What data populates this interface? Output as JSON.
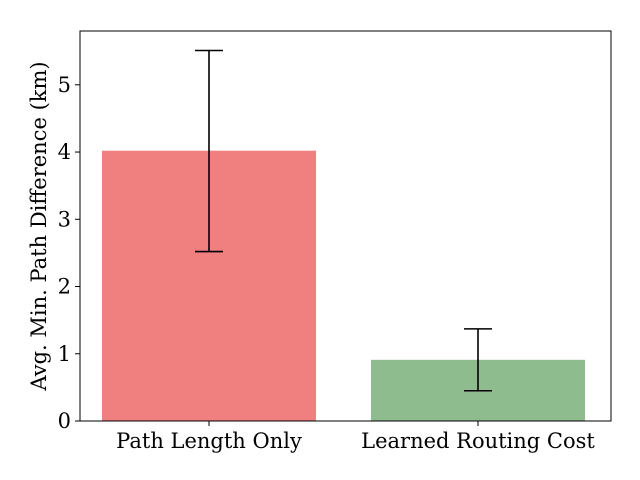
{
  "chart_data": {
    "type": "bar",
    "title": "",
    "xlabel": "",
    "ylabel": "Avg. Min. Path Difference (km)",
    "categories": [
      "Path Length Only",
      "Learned Routing Cost"
    ],
    "values": [
      4.02,
      0.91
    ],
    "error_bars": [
      {
        "lower": 2.52,
        "upper": 5.51
      },
      {
        "lower": 0.45,
        "upper": 1.37
      }
    ],
    "colors": [
      "#f08080",
      "#8fbc8f"
    ],
    "ylim": [
      0,
      5.8
    ],
    "yticks": [
      0,
      1,
      2,
      3,
      4,
      5
    ],
    "grid": false,
    "legend": "none"
  }
}
